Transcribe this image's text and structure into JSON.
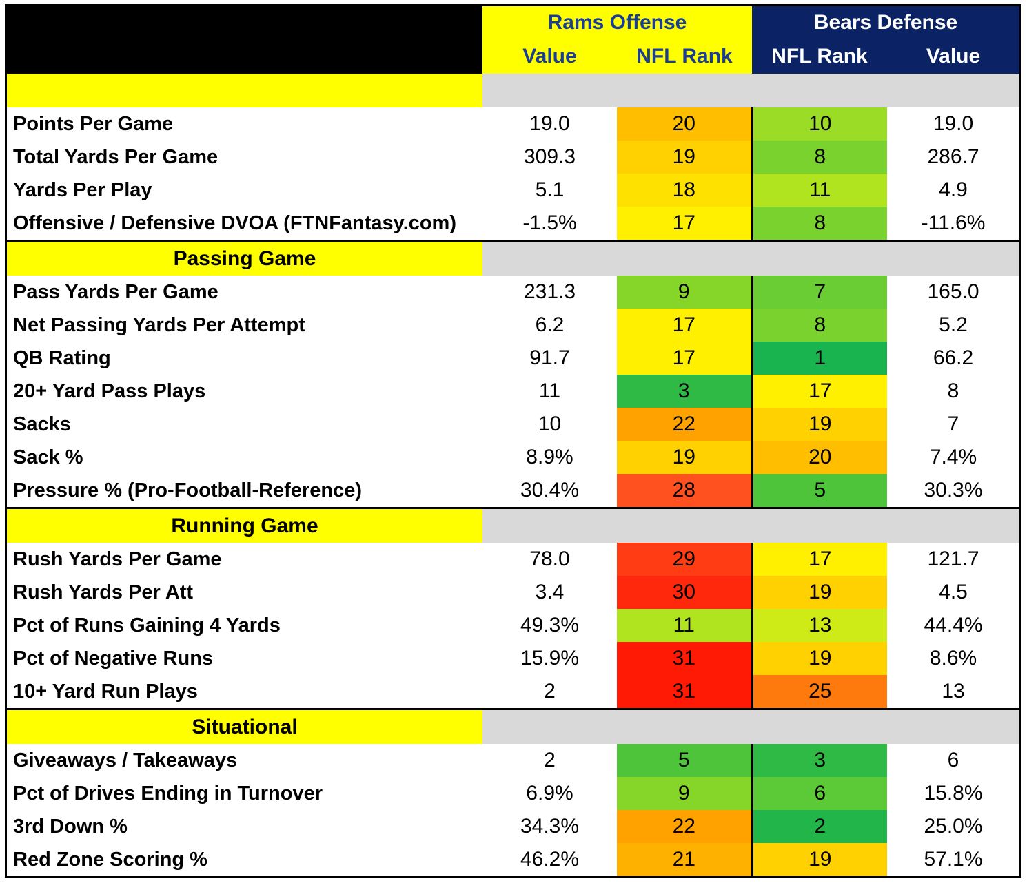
{
  "header": {
    "rams_title": "Rams Offense",
    "bears_title": "Bears Defense",
    "col_value_left": "Value",
    "col_rank_left": "NFL Rank",
    "col_rank_right": "NFL Rank",
    "col_value_right": "Value"
  },
  "sections": [
    {
      "title": "",
      "rows": [
        {
          "label": "Points Per Game",
          "off_value": "19.0",
          "off_rank": "20",
          "off_color": "#ffbf00",
          "def_rank": "10",
          "def_color": "#9bdd26",
          "def_value": "19.0"
        },
        {
          "label": "Total Yards Per Game",
          "off_value": "309.3",
          "off_rank": "19",
          "off_color": "#ffd100",
          "def_rank": "8",
          "def_color": "#79d22e",
          "def_value": "286.7"
        },
        {
          "label": "Yards Per Play",
          "off_value": "5.1",
          "off_rank": "18",
          "off_color": "#ffe100",
          "def_rank": "11",
          "def_color": "#b0e41f",
          "def_value": "4.9"
        },
        {
          "label": "Offensive / Defensive DVOA (FTNFantasy.com)",
          "off_value": "-1.5%",
          "off_rank": "17",
          "off_color": "#fff000",
          "def_rank": "8",
          "def_color": "#79d22e",
          "def_value": "-11.6%"
        }
      ]
    },
    {
      "title": "Passing Game",
      "rows": [
        {
          "label": "Pass Yards Per Game",
          "off_value": "231.3",
          "off_rank": "9",
          "off_color": "#86d62a",
          "def_rank": "7",
          "def_color": "#6acd33",
          "def_value": "165.0"
        },
        {
          "label": "Net Passing Yards Per Attempt",
          "off_value": "6.2",
          "off_rank": "17",
          "off_color": "#fff000",
          "def_rank": "8",
          "def_color": "#79d22e",
          "def_value": "5.2"
        },
        {
          "label": "QB Rating",
          "off_value": "91.7",
          "off_rank": "17",
          "off_color": "#fff000",
          "def_rank": "1",
          "def_color": "#19b34f",
          "def_value": "66.2"
        },
        {
          "label": "20+ Yard Pass Plays",
          "off_value": "11",
          "off_rank": "3",
          "off_color": "#2eba44",
          "def_rank": "17",
          "def_color": "#fff000",
          "def_value": "8"
        },
        {
          "label": "Sacks",
          "off_value": "10",
          "off_rank": "22",
          "off_color": "#ffa200",
          "def_rank": "19",
          "def_color": "#ffd100",
          "def_value": "7"
        },
        {
          "label": "Sack %",
          "off_value": "8.9%",
          "off_rank": "19",
          "off_color": "#ffd100",
          "def_rank": "20",
          "def_color": "#ffbf00",
          "def_value": "7.4%"
        },
        {
          "label": "Pressure % (Pro-Football-Reference)",
          "off_value": "30.4%",
          "off_rank": "28",
          "off_color": "#ff5020",
          "def_rank": "5",
          "def_color": "#4ec43b",
          "def_value": "30.3%"
        }
      ]
    },
    {
      "title": "Running Game",
      "rows": [
        {
          "label": "Rush Yards Per Game",
          "off_value": "78.0",
          "off_rank": "29",
          "off_color": "#ff3c14",
          "def_rank": "17",
          "def_color": "#fff000",
          "def_value": "121.7"
        },
        {
          "label": "Rush Yards Per Att",
          "off_value": "3.4",
          "off_rank": "30",
          "off_color": "#ff280c",
          "def_rank": "19",
          "def_color": "#ffd100",
          "def_value": "4.5"
        },
        {
          "label": "Pct of Runs Gaining 4 Yards",
          "off_value": "49.3%",
          "off_rank": "11",
          "off_color": "#b0e41f",
          "def_rank": "13",
          "def_color": "#cfeb17",
          "def_value": "44.4%"
        },
        {
          "label": "Pct of Negative Runs",
          "off_value": "15.9%",
          "off_rank": "31",
          "off_color": "#ff1a06",
          "def_rank": "19",
          "def_color": "#ffd100",
          "def_value": "8.6%"
        },
        {
          "label": "10+ Yard Run Plays",
          "off_value": "2",
          "off_rank": "31",
          "off_color": "#ff1a06",
          "def_rank": "25",
          "def_color": "#ff7a0c",
          "def_value": "13"
        }
      ]
    },
    {
      "title": "Situational",
      "rows": [
        {
          "label": "Giveaways / Takeaways",
          "off_value": "2",
          "off_rank": "5",
          "off_color": "#4ec43b",
          "def_rank": "3",
          "def_color": "#2eba44",
          "def_value": "6"
        },
        {
          "label": "Pct of Drives Ending in Turnover",
          "off_value": "6.9%",
          "off_rank": "9",
          "off_color": "#86d62a",
          "def_rank": "6",
          "def_color": "#5cc936",
          "def_value": "15.8%"
        },
        {
          "label": "3rd Down %",
          "off_value": "34.3%",
          "off_rank": "22",
          "off_color": "#ffa200",
          "def_rank": "2",
          "def_color": "#22b54a",
          "def_value": "25.0%"
        },
        {
          "label": "Red Zone Scoring %",
          "off_value": "46.2%",
          "off_rank": "21",
          "off_color": "#ffb100",
          "def_rank": "19",
          "def_color": "#ffd100",
          "def_value": "57.1%"
        }
      ]
    }
  ]
}
